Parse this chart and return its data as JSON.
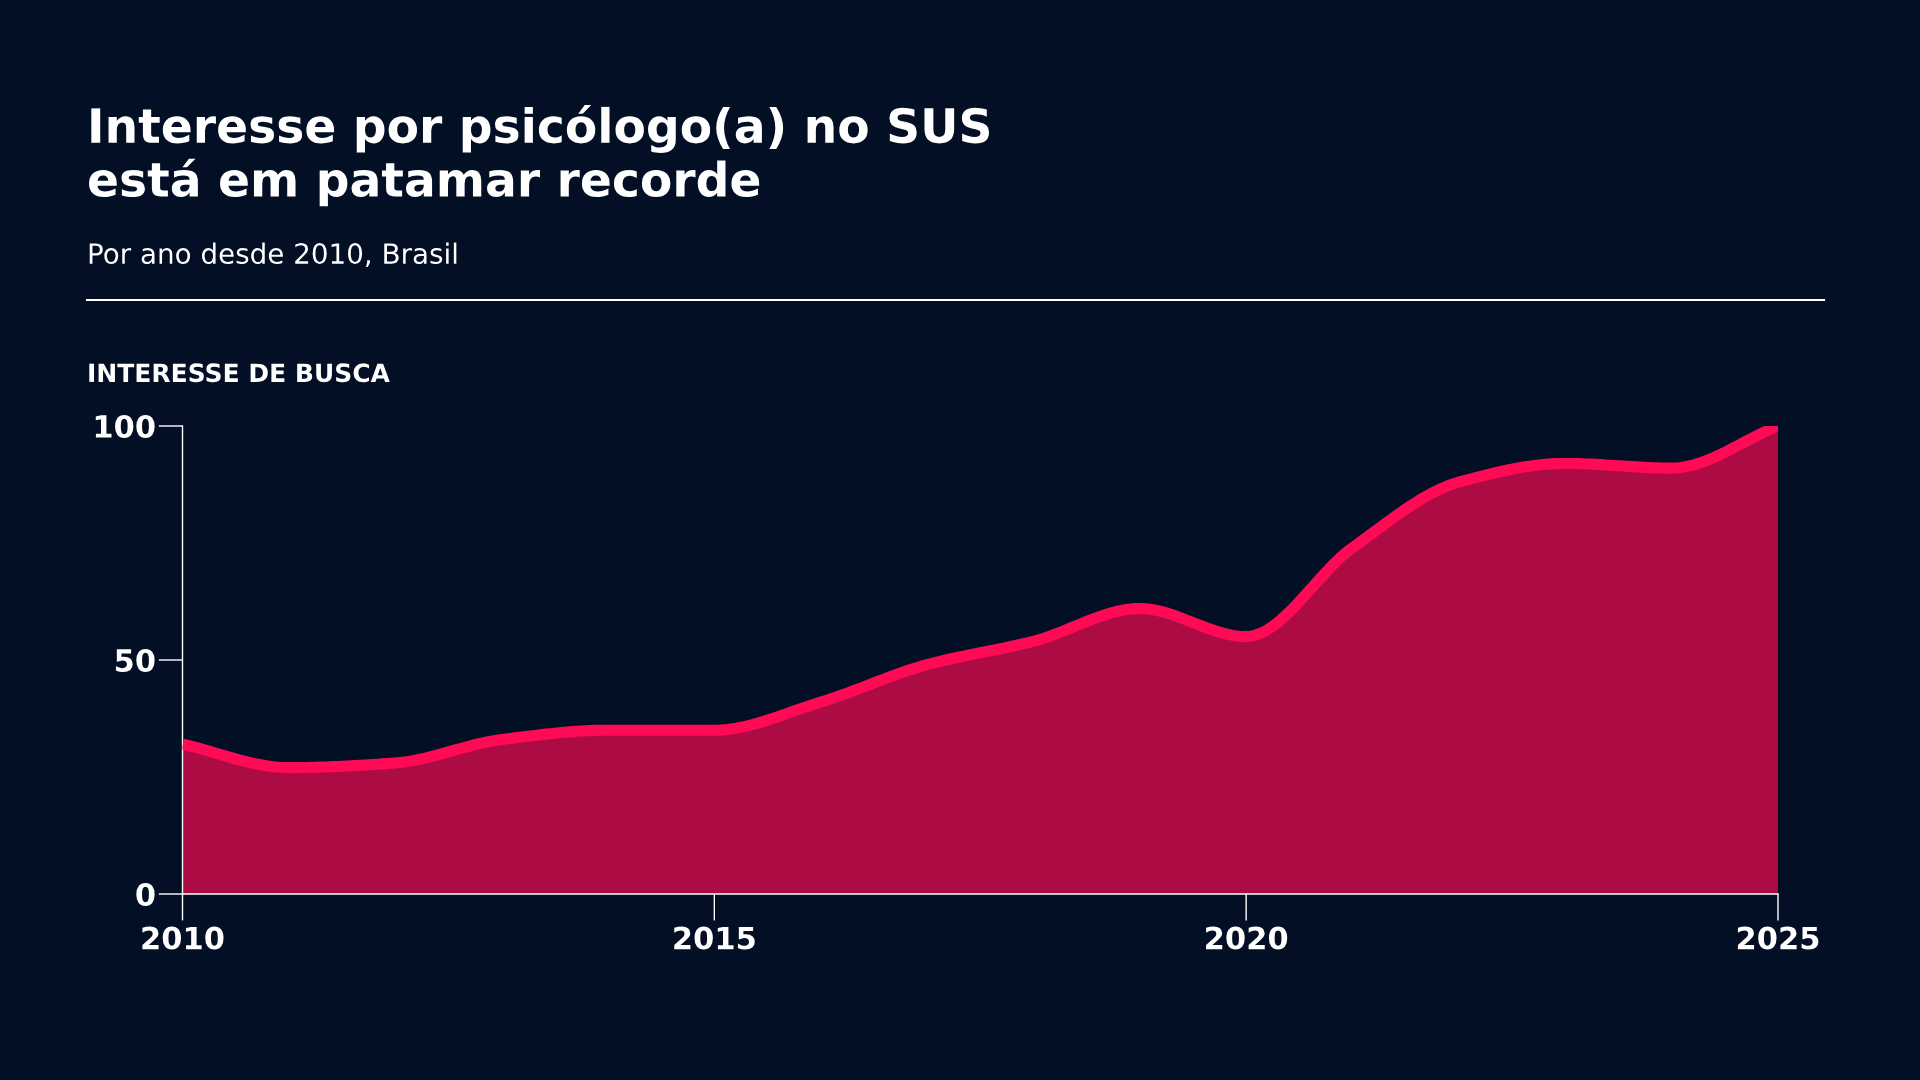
{
  "chart_data": {
    "type": "area",
    "title": "Interesse por psicólogo(a) no SUS\nestá em patamar recorde",
    "subtitle": "Por ano desde 2010, Brasil",
    "ylabel": "INTERESSE DE BUSCA",
    "x": [
      2010,
      2011,
      2012,
      2013,
      2014,
      2015,
      2016,
      2017,
      2018,
      2019,
      2020,
      2021,
      2022,
      2023,
      2024,
      2025
    ],
    "series": [
      {
        "color": "#ff0a54",
        "values": [
          32,
          27,
          28,
          33,
          35,
          35,
          41,
          49,
          54,
          61,
          55,
          74,
          88,
          92,
          91,
          100
        ]
      }
    ],
    "xlim": [
      2010,
      2025
    ],
    "ylim": [
      0,
      100
    ],
    "xticks": [
      2010,
      2015,
      2020,
      2025
    ],
    "yticks": [
      0,
      50,
      100
    ],
    "grid": false
  }
}
